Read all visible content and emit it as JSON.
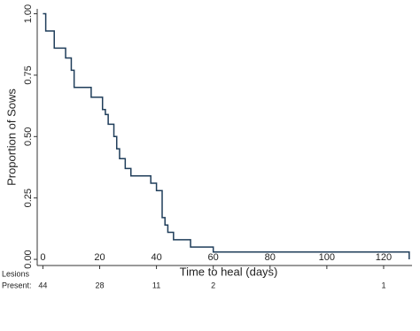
{
  "chart_data": {
    "type": "step",
    "y_label": "Proportion of Sows",
    "x_label": "Time to heal (days)",
    "x": [
      0,
      1,
      4,
      8,
      10,
      11,
      17,
      21,
      22,
      23,
      25,
      26,
      27,
      29,
      31,
      38,
      40,
      42,
      43,
      44,
      46,
      52,
      60,
      129
    ],
    "series": [
      {
        "color": "#1f3d5a",
        "values": [
          1.0,
          0.93,
          0.86,
          0.82,
          0.77,
          0.7,
          0.66,
          0.61,
          0.59,
          0.55,
          0.5,
          0.45,
          0.41,
          0.37,
          0.34,
          0.31,
          0.28,
          0.17,
          0.14,
          0.11,
          0.08,
          0.05,
          0.03,
          0.0
        ]
      }
    ],
    "xlim": [
      -2,
      130
    ],
    "ylim": [
      -0.025,
      1.02
    ],
    "xticks": [
      0,
      20,
      40,
      60,
      80,
      100,
      120
    ],
    "yticks": [
      {
        "value": 0,
        "label": "0.00"
      },
      {
        "value": 0.25,
        "label": "0.25"
      },
      {
        "value": 0.5,
        "label": "0.50"
      },
      {
        "value": 0.75,
        "label": "0.75"
      },
      {
        "value": 1,
        "label": "1.00"
      }
    ],
    "risk_table": {
      "label": [
        "Lesions",
        "Present:"
      ],
      "x": [
        0,
        20,
        40,
        60,
        120
      ],
      "counts": [
        44,
        28,
        11,
        2,
        1
      ]
    }
  }
}
